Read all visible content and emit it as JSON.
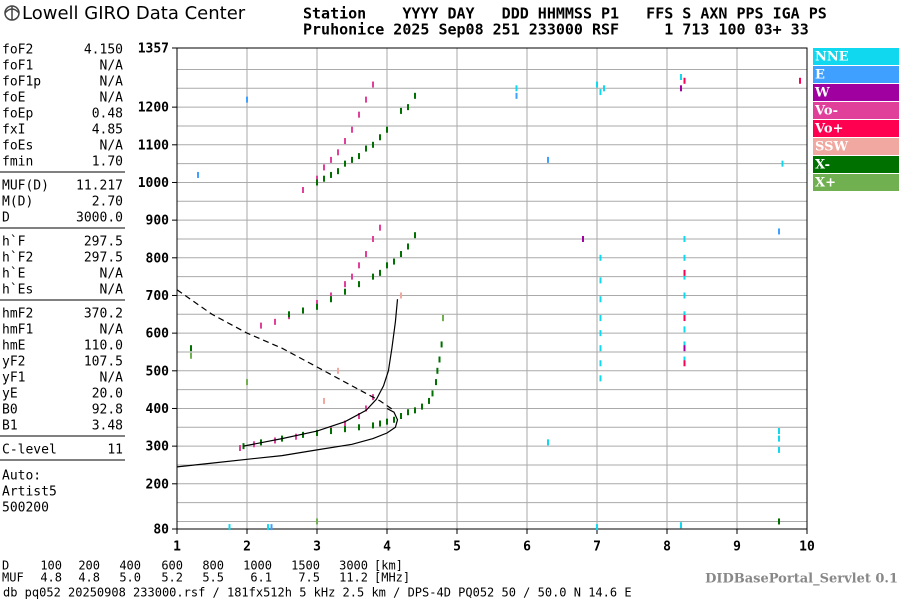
{
  "header": {
    "logo": "Lowell GIRO Data Center",
    "line1": "Station    YYYY DAY   DDD HHMMSS P1   FFS S AXN PPS IGA PS",
    "line2": "Pruhonice 2025 Sep08 251 233000 RSF     1 713 100 03+ 33"
  },
  "parameters": [
    {
      "name": "foF2",
      "value": "4.150"
    },
    {
      "name": "foF1",
      "value": "N/A"
    },
    {
      "name": "foF1p",
      "value": "N/A"
    },
    {
      "name": "foE",
      "value": "N/A"
    },
    {
      "name": "foEp",
      "value": "0.48"
    },
    {
      "name": "fxI",
      "value": "4.85"
    },
    {
      "name": "foEs",
      "value": "N/A"
    },
    {
      "name": "fmin",
      "value": "1.70"
    },
    {
      "name": "MUF(D)",
      "value": "11.217"
    },
    {
      "name": "M(D)",
      "value": "2.70"
    },
    {
      "name": "D",
      "value": "3000.0"
    },
    {
      "name": "h`F",
      "value": "297.5"
    },
    {
      "name": "h`F2",
      "value": "297.5"
    },
    {
      "name": "h`E",
      "value": "N/A"
    },
    {
      "name": "h`Es",
      "value": "N/A"
    },
    {
      "name": "hmF2",
      "value": "370.2"
    },
    {
      "name": "hmF1",
      "value": "N/A"
    },
    {
      "name": "hmE",
      "value": "110.0"
    },
    {
      "name": "yF2",
      "value": "107.5"
    },
    {
      "name": "yF1",
      "value": "N/A"
    },
    {
      "name": "yE",
      "value": "20.0"
    },
    {
      "name": "B0",
      "value": "92.8"
    },
    {
      "name": "B1",
      "value": "3.48"
    },
    {
      "name": "C-level",
      "value": "11"
    }
  ],
  "auto": [
    "Auto:",
    "Artist5",
    "500200"
  ],
  "muf_table": {
    "rows": [
      {
        "label": "D",
        "values": [
          "100",
          "200",
          "400",
          "600",
          "800",
          "1000",
          "1500",
          "3000"
        ],
        "unit": "[km]"
      },
      {
        "label": "MUF",
        "values": [
          "4.8",
          "4.8",
          "5.0",
          "5.2",
          "5.5",
          "6.1",
          "7.5",
          "11.2"
        ],
        "unit": "[MHz]"
      }
    ]
  },
  "servlet": "DIDBasePortal_Servlet 0.1",
  "footer": "db pq052 20250908 233000.rsf / 181fx512h 5 kHz 2.5 km / DPS-4D PQ052 50 / 50.0 N 14.6 E",
  "chart_data": {
    "type": "scatter",
    "xlim": [
      1,
      10
    ],
    "xticks": [
      1,
      2,
      3,
      4,
      5,
      6,
      7,
      8,
      9,
      10
    ],
    "ylim": [
      80,
      1357
    ],
    "yticks": [
      80,
      200,
      300,
      400,
      500,
      600,
      700,
      800,
      900,
      1000,
      1100,
      1200,
      1357
    ],
    "ygrid": [
      100,
      150,
      200,
      250,
      300,
      350,
      400,
      450,
      500,
      550,
      600,
      650,
      700,
      750,
      800,
      850,
      900,
      950,
      1000,
      1050,
      1100,
      1150,
      1200,
      1250,
      1300
    ],
    "grid": true,
    "series": [
      {
        "name": "NNE",
        "color": "#10d8ee",
        "x": [
          7.05,
          7.05,
          7.05,
          7.05,
          7.05,
          7.05,
          7.05,
          7.05,
          8.25,
          8.25,
          8.25,
          8.25,
          8.25,
          8.25,
          8.25,
          8.25,
          7.0,
          7.05,
          7.1,
          9.6,
          9.6,
          9.6,
          5.85,
          6.3,
          1.75,
          2.3,
          8.2,
          9.65,
          7.0,
          8.2
        ],
        "values": [
          480,
          520,
          560,
          600,
          640,
          690,
          740,
          800,
          530,
          570,
          610,
          650,
          700,
          750,
          800,
          850,
          1260,
          1240,
          1250,
          290,
          320,
          340,
          1250,
          310,
          85,
          85,
          1280,
          1050,
          85,
          90
        ]
      },
      {
        "name": "E",
        "color": "#40a0ff",
        "x": [
          2.0,
          2.35,
          5.85,
          6.3,
          1.3,
          9.6
        ],
        "values": [
          1220,
          85,
          1230,
          1060,
          1020,
          870
        ]
      },
      {
        "name": "W",
        "color": "#a000a0",
        "x": [
          8.25,
          6.8,
          8.2
        ],
        "values": [
          560,
          850,
          1250
        ]
      },
      {
        "name": "Vo-",
        "color": "#e0409a",
        "x": [
          1.9,
          2.1,
          2.4,
          2.7,
          3.0,
          3.2,
          3.4,
          3.6,
          3.7,
          3.8,
          2.2,
          2.4,
          2.6,
          2.8,
          3.0,
          3.2,
          3.4,
          3.5,
          3.6,
          3.7,
          3.8,
          3.9,
          2.8,
          3.0,
          3.1,
          3.2,
          3.3,
          3.4,
          3.5,
          3.6,
          3.7,
          3.8
        ],
        "values": [
          295,
          305,
          315,
          325,
          335,
          345,
          360,
          380,
          400,
          430,
          620,
          630,
          645,
          660,
          680,
          700,
          730,
          750,
          780,
          810,
          850,
          880,
          980,
          1010,
          1040,
          1060,
          1080,
          1110,
          1140,
          1180,
          1220,
          1260
        ]
      },
      {
        "name": "Vo+",
        "color": "#ff0050",
        "x": [
          8.25,
          8.25,
          8.25,
          9.9,
          8.25
        ],
        "values": [
          520,
          640,
          760,
          1270,
          1270
        ]
      },
      {
        "name": "SSW",
        "color": "#f0a8a0",
        "x": [
          3.1,
          4.2,
          3.3
        ],
        "values": [
          420,
          700,
          500
        ]
      },
      {
        "name": "X-",
        "color": "#007000",
        "x": [
          1.95,
          2.2,
          2.5,
          2.8,
          3.0,
          3.2,
          3.4,
          3.6,
          3.8,
          3.9,
          4.0,
          4.1,
          4.2,
          4.3,
          4.4,
          4.5,
          4.6,
          4.65,
          4.7,
          4.72,
          4.75,
          4.78,
          4.8,
          2.6,
          2.8,
          3.0,
          3.2,
          3.4,
          3.6,
          3.8,
          3.9,
          4.0,
          4.1,
          4.2,
          4.3,
          4.4,
          3.0,
          3.1,
          3.2,
          3.3,
          3.4,
          3.5,
          3.6,
          3.7,
          3.8,
          3.9,
          4.0,
          4.2,
          4.3,
          4.4,
          1.2,
          9.6
        ],
        "values": [
          300,
          310,
          320,
          330,
          335,
          340,
          345,
          350,
          355,
          360,
          365,
          370,
          380,
          390,
          395,
          405,
          420,
          440,
          470,
          500,
          530,
          570,
          640,
          650,
          660,
          670,
          690,
          710,
          730,
          750,
          760,
          780,
          790,
          810,
          830,
          860,
          1000,
          1010,
          1020,
          1030,
          1050,
          1060,
          1070,
          1090,
          1100,
          1120,
          1140,
          1190,
          1200,
          1230,
          560,
          100
        ]
      },
      {
        "name": "X+",
        "color": "#70b050",
        "x": [
          4.8,
          3.0,
          1.2,
          2.0
        ],
        "values": [
          640,
          100,
          540,
          470
        ]
      }
    ],
    "lines": [
      {
        "style": "solid",
        "x": [
          1.0,
          1.5,
          2.0,
          2.5,
          3.0,
          3.5,
          3.8,
          4.0,
          4.12,
          4.15,
          4.1,
          4.0
        ],
        "values": [
          245,
          255,
          265,
          275,
          290,
          305,
          320,
          335,
          350,
          370,
          390,
          400
        ]
      },
      {
        "style": "solid",
        "x": [
          1.95,
          2.5,
          3.0,
          3.4,
          3.7,
          3.85,
          3.95,
          4.02,
          4.07,
          4.12,
          4.15
        ],
        "values": [
          300,
          320,
          340,
          365,
          395,
          425,
          460,
          500,
          560,
          630,
          690
        ]
      },
      {
        "style": "dashed",
        "x": [
          1.0,
          1.5,
          2.0,
          2.5,
          3.0,
          3.5,
          3.9,
          4.1
        ],
        "values": [
          715,
          650,
          600,
          560,
          510,
          460,
          420,
          395
        ]
      }
    ]
  }
}
